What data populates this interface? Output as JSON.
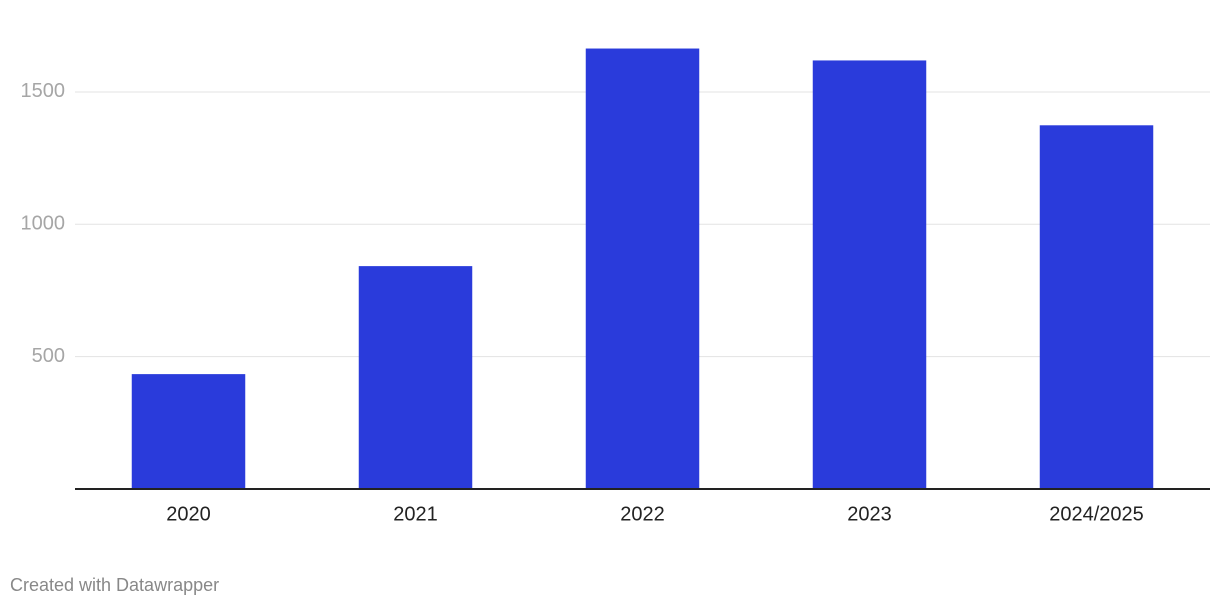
{
  "chart_data": {
    "type": "bar",
    "categories": [
      "2020",
      "2021",
      "2022",
      "2023",
      "2024/2025"
    ],
    "values": [
      434,
      842,
      1664,
      1619,
      1374
    ],
    "color": "#2a3bdb",
    "ylim": [
      0,
      1700
    ],
    "yticks": [
      500,
      1000,
      1500
    ],
    "grid": true,
    "credit": "Created with Datawrapper"
  }
}
